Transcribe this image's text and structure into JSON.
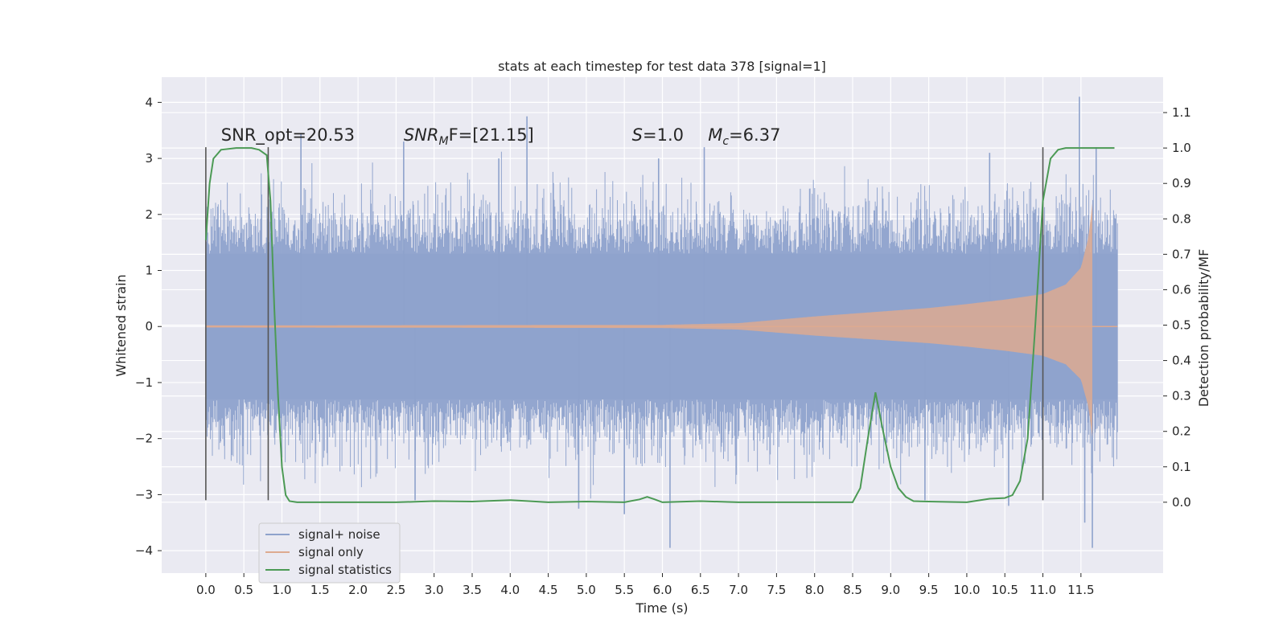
{
  "chart_data": {
    "type": "line",
    "title": "stats at each timestep for test data 378 [signal=1]",
    "xlabel": "Time (s)",
    "ylabel": "Whitened strain",
    "ylabel_right": "Detection probability/MF",
    "xlim": [
      -0.58,
      12.58
    ],
    "ylim": [
      -4.4,
      4.45
    ],
    "ylim_right": [
      -0.2,
      1.2
    ],
    "xticks": [
      0.0,
      0.5,
      1.0,
      1.5,
      2.0,
      2.5,
      3.0,
      3.5,
      4.0,
      4.5,
      5.0,
      5.5,
      6.0,
      6.5,
      7.0,
      7.5,
      8.0,
      8.5,
      9.0,
      9.5,
      10.0,
      10.5,
      11.0,
      11.5
    ],
    "xtick_labels": [
      "0.0",
      "0.5",
      "1.0",
      "1.5",
      "2.0",
      "2.5",
      "3.0",
      "3.5",
      "4.0",
      "4.5",
      "5.0",
      "5.5",
      "6.0",
      "6.5",
      "7.0",
      "7.5",
      "8.0",
      "8.5",
      "9.0",
      "9.5",
      "10.0",
      "10.5",
      "11.0",
      "11.5"
    ],
    "yticks": [
      -4,
      -3,
      -2,
      -1,
      0,
      1,
      2,
      3,
      4
    ],
    "ytick_labels": [
      "−4",
      "−3",
      "−2",
      "−1",
      "0",
      "1",
      "2",
      "3",
      "4"
    ],
    "yticks_right": [
      0.0,
      0.1,
      0.2,
      0.3,
      0.4,
      0.5,
      0.6,
      0.7,
      0.8,
      0.9,
      1.0,
      1.1
    ],
    "ytick_labels_right": [
      "0.0",
      "0.1",
      "0.2",
      "0.3",
      "0.4",
      "0.5",
      "0.6",
      "0.7",
      "0.8",
      "0.9",
      "1.0",
      "1.1"
    ],
    "grid": true,
    "legend_position": "bottom-left",
    "annotations": [
      {
        "text": "SNR_opt=20.53",
        "x": 0.2,
        "y": 3.32
      },
      {
        "text_main": "SNR",
        "text_sub": "M",
        "text_rest": "F=[21.15]",
        "x": 2.6,
        "y": 3.32
      },
      {
        "text_main": "S",
        "text_rest": "=1.0",
        "x": 5.6,
        "y": 3.32
      },
      {
        "text_main": "M",
        "text_sub": "c",
        "text_rest": "=6.37",
        "x": 6.6,
        "y": 3.32
      }
    ],
    "vlines": [
      {
        "x": 0.0,
        "y": [
          -3.1,
          3.2
        ]
      },
      {
        "x": 0.82,
        "y": [
          -3.1,
          3.2
        ]
      },
      {
        "x": 11.0,
        "y": [
          -3.1,
          3.2
        ]
      }
    ],
    "series": [
      {
        "name": "signal+ noise",
        "color": "#8ea2cc",
        "kind": "noise",
        "x_range": [
          0.0,
          11.98
        ],
        "envelope_pos": 1.3,
        "envelope_neg": -1.3,
        "spikes": [
          {
            "x": 1.25,
            "y": 3.45
          },
          {
            "x": 2.6,
            "y": 3.3
          },
          {
            "x": 4.22,
            "y": 3.75
          },
          {
            "x": 6.55,
            "y": 3.2
          },
          {
            "x": 11.48,
            "y": 4.1
          },
          {
            "x": 11.7,
            "y": 3.2
          },
          {
            "x": 5.5,
            "y": -3.35
          },
          {
            "x": 6.1,
            "y": -3.95
          },
          {
            "x": 11.65,
            "y": -3.95
          },
          {
            "x": 4.9,
            "y": -3.25
          },
          {
            "x": 2.75,
            "y": -3.1
          },
          {
            "x": 11.55,
            "y": -3.5
          },
          {
            "x": 3.85,
            "y": 3.0
          },
          {
            "x": 5.95,
            "y": 3.0
          },
          {
            "x": 10.3,
            "y": 3.1
          },
          {
            "x": 9.45,
            "y": -3.1
          },
          {
            "x": 10.55,
            "y": -3.2
          }
        ]
      },
      {
        "name": "signal only",
        "color": "#ddaa90",
        "kind": "chirp",
        "x": [
          0.0,
          6.0,
          7.0,
          7.5,
          8.0,
          8.5,
          9.0,
          9.5,
          10.0,
          10.5,
          11.0,
          11.3,
          11.5,
          11.6,
          11.65,
          11.98
        ],
        "amplitude": [
          0.02,
          0.03,
          0.06,
          0.12,
          0.18,
          0.23,
          0.28,
          0.33,
          0.4,
          0.48,
          0.58,
          0.75,
          1.05,
          1.6,
          2.2,
          0.0
        ]
      },
      {
        "name": "signal statistics",
        "color": "#4c9a55",
        "kind": "line",
        "axis": "right",
        "x": [
          0.0,
          0.05,
          0.1,
          0.2,
          0.4,
          0.6,
          0.7,
          0.8,
          0.85,
          0.9,
          0.95,
          1.0,
          1.05,
          1.1,
          1.2,
          1.5,
          2.0,
          2.5,
          3.0,
          3.5,
          4.0,
          4.5,
          5.0,
          5.5,
          5.7,
          5.8,
          5.9,
          6.0,
          6.5,
          7.0,
          7.5,
          8.0,
          8.5,
          8.6,
          8.7,
          8.8,
          8.9,
          9.0,
          9.1,
          9.2,
          9.3,
          9.5,
          10.0,
          10.3,
          10.5,
          10.6,
          10.7,
          10.8,
          10.9,
          11.0,
          11.1,
          11.2,
          11.3,
          11.5,
          11.94
        ],
        "values": [
          0.74,
          0.9,
          0.97,
          0.995,
          1.0,
          1.0,
          0.995,
          0.98,
          0.85,
          0.55,
          0.3,
          0.1,
          0.02,
          0.003,
          0.0,
          0.0,
          0.0,
          0.0,
          0.003,
          0.002,
          0.006,
          0.0,
          0.002,
          0.0,
          0.008,
          0.015,
          0.008,
          0.0,
          0.003,
          0.0,
          0.0,
          0.0,
          0.0,
          0.04,
          0.18,
          0.31,
          0.2,
          0.1,
          0.04,
          0.015,
          0.003,
          0.002,
          0.0,
          0.01,
          0.012,
          0.02,
          0.06,
          0.18,
          0.5,
          0.85,
          0.97,
          0.995,
          1.0,
          1.0,
          1.0
        ]
      }
    ]
  }
}
